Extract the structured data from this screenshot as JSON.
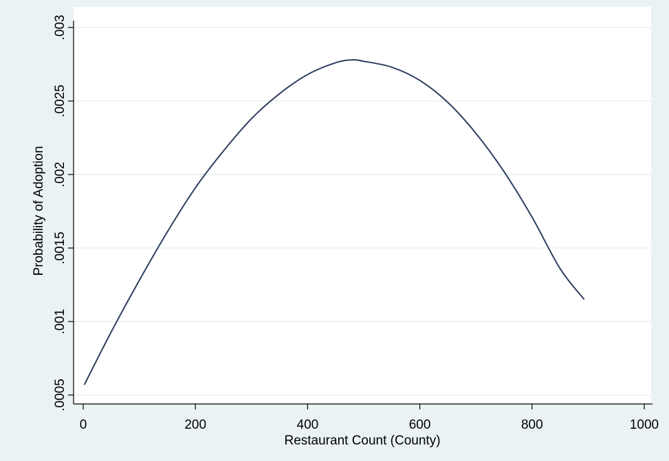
{
  "chart_data": {
    "type": "line",
    "title": "",
    "xlabel": "Restaurant Count (County)",
    "ylabel": "Probability of Adoption",
    "xlim": [
      0,
      1000
    ],
    "ylim": [
      0.0005,
      0.003
    ],
    "x_ticks": [
      0,
      200,
      400,
      600,
      800,
      1000
    ],
    "x_tick_labels": [
      "0",
      "200",
      "400",
      "600",
      "800",
      "1000"
    ],
    "y_ticks": [
      0.0005,
      0.001,
      0.0015,
      0.002,
      0.0025,
      0.003
    ],
    "y_tick_labels": [
      ".0005",
      ".001",
      ".0015",
      ".002",
      ".0025",
      ".003"
    ],
    "grid": true,
    "legend": "none",
    "colors": {
      "line": "#2d3e5d",
      "plot_background": "#ffffff",
      "background": "#eaf2f3",
      "grid": "#e9f1f1"
    },
    "series": [
      {
        "x": [
          2,
          50,
          100,
          150,
          200,
          250,
          300,
          350,
          400,
          450,
          480,
          500,
          550,
          600,
          650,
          700,
          750,
          800,
          850,
          893
        ],
        "y": [
          0.00057,
          0.00093,
          0.00128,
          0.00161,
          0.00191,
          0.00216,
          0.00238,
          0.00255,
          0.00268,
          0.00276,
          0.00278,
          0.00277,
          0.00273,
          0.00264,
          0.00249,
          0.00228,
          0.00202,
          0.00171,
          0.00136,
          0.00115
        ]
      }
    ]
  }
}
